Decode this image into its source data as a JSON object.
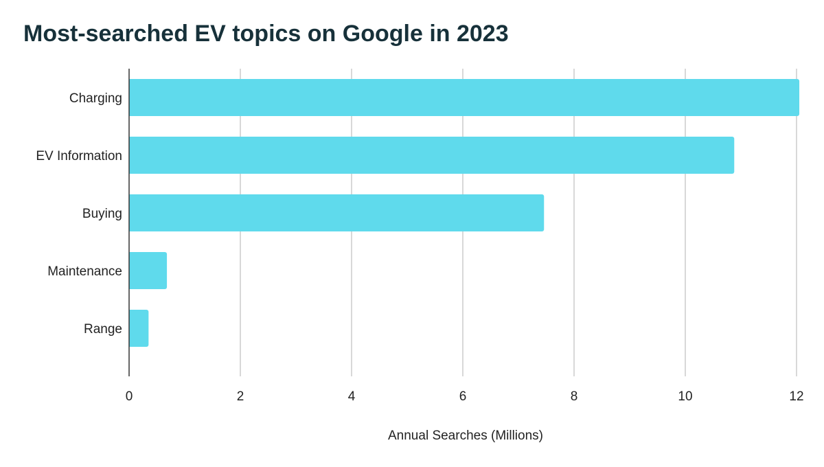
{
  "chart_data": {
    "type": "bar",
    "orientation": "horizontal",
    "title": "Most-searched EV topics on Google in 2023",
    "xlabel": "Annual Searches (Millions)",
    "ylabel": "",
    "categories": [
      "Charging",
      "EV Information",
      "Buying",
      "Maintenance",
      "Range"
    ],
    "values": [
      12.05,
      10.88,
      7.46,
      0.68,
      0.35
    ],
    "xlim": [
      0,
      12
    ],
    "xticks": [
      "0",
      "2",
      "4",
      "6",
      "8",
      "10",
      "12"
    ],
    "grid": true,
    "legend": "none",
    "bar_color": "#5fdaec",
    "grid_color": "#cccccc",
    "axis_color": "#333333",
    "title_color": "#17313a",
    "label_color": "#222222"
  }
}
